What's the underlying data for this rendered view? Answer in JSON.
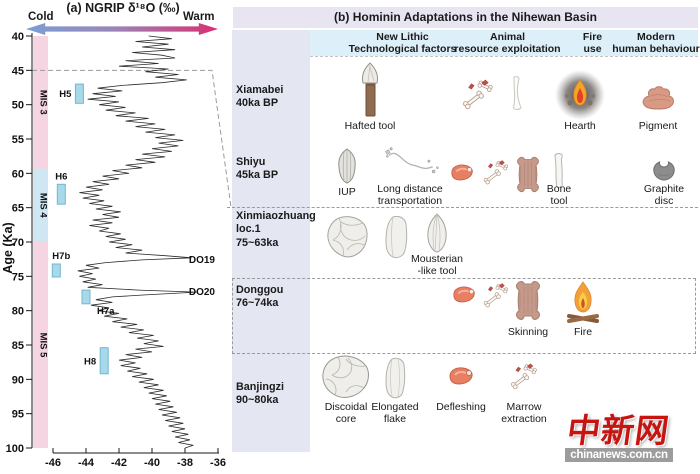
{
  "panel_a": {
    "cold_label": "Cold",
    "warm_label": "Warm"
  },
  "chart_data": {
    "type": "line",
    "title": "(a) NGRIP δ¹⁸O (‰)",
    "xlabel": "",
    "ylabel": "Age (Ka)",
    "xlim": [
      -46,
      -36
    ],
    "ylim": [
      40,
      100
    ],
    "x_ticks": [
      -46,
      -44,
      -42,
      -40,
      -38,
      -36
    ],
    "y_ticks": [
      40,
      45,
      50,
      55,
      60,
      65,
      70,
      75,
      80,
      85,
      90,
      95,
      100
    ],
    "grid": false,
    "mis_bands": [
      {
        "label": "MIS 3",
        "from": 40,
        "to": 59.3,
        "color": "#f6d5e2"
      },
      {
        "label": "MIS 4",
        "from": 59.3,
        "to": 70,
        "color": "#cfe7f3"
      },
      {
        "label": "MIS 5",
        "from": 70,
        "to": 100,
        "color": "#f6d5e2"
      }
    ],
    "heinrich_events": [
      {
        "label": "H5",
        "from": 47.0,
        "to": 49.8,
        "value": -44.4,
        "side": "left"
      },
      {
        "label": "H6",
        "from": 61.6,
        "to": 64.5,
        "value": -45.5,
        "side": "above"
      },
      {
        "label": "H7b",
        "from": 73.2,
        "to": 75.1,
        "value": -45.8,
        "side": "above-start"
      },
      {
        "label": "H7a",
        "from": 77.0,
        "to": 79.0,
        "value": -44.0,
        "side": "below-right"
      },
      {
        "label": "H8",
        "from": 85.4,
        "to": 89.2,
        "value": -42.9,
        "side": "left"
      }
    ],
    "do_events": [
      {
        "label": "DO19",
        "age": 72.6
      },
      {
        "label": "DO20",
        "age": 77.3
      }
    ],
    "dashed_link_age": 45,
    "series": [
      {
        "name": "NGRIP δ¹⁸O",
        "points": [
          [
            40.0,
            -40.2
          ],
          [
            40.4,
            -38.8
          ],
          [
            40.8,
            -41.0
          ],
          [
            41.2,
            -39.0
          ],
          [
            41.6,
            -40.6
          ],
          [
            42.0,
            -38.6
          ],
          [
            42.4,
            -41.2
          ],
          [
            42.8,
            -39.4
          ],
          [
            43.2,
            -38.6
          ],
          [
            43.6,
            -41.6
          ],
          [
            44.0,
            -39.6
          ],
          [
            44.4,
            -42.0
          ],
          [
            44.8,
            -39.0
          ],
          [
            45.2,
            -40.4
          ],
          [
            45.6,
            -38.4
          ],
          [
            46.0,
            -39.8
          ],
          [
            46.4,
            -37.9
          ],
          [
            46.8,
            -39.4
          ],
          [
            47.2,
            -41.8
          ],
          [
            47.6,
            -43.3
          ],
          [
            48.0,
            -41.8
          ],
          [
            48.4,
            -43.6
          ],
          [
            48.8,
            -42.2
          ],
          [
            49.2,
            -43.9
          ],
          [
            49.6,
            -42.0
          ],
          [
            50.0,
            -43.2
          ],
          [
            50.4,
            -41.6
          ],
          [
            50.8,
            -42.8
          ],
          [
            51.2,
            -41.0
          ],
          [
            51.6,
            -42.2
          ],
          [
            52.0,
            -40.2
          ],
          [
            52.4,
            -41.6
          ],
          [
            52.8,
            -39.8
          ],
          [
            53.2,
            -41.0
          ],
          [
            53.6,
            -39.2
          ],
          [
            54.0,
            -40.4
          ],
          [
            54.4,
            -38.6
          ],
          [
            54.8,
            -39.8
          ],
          [
            55.2,
            -38.1
          ],
          [
            55.6,
            -39.6
          ],
          [
            56.0,
            -38.4
          ],
          [
            56.4,
            -40.0
          ],
          [
            56.8,
            -38.8
          ],
          [
            57.2,
            -40.6
          ],
          [
            57.6,
            -39.2
          ],
          [
            58.0,
            -41.0
          ],
          [
            58.4,
            -39.8
          ],
          [
            58.8,
            -41.6
          ],
          [
            59.2,
            -40.6
          ],
          [
            59.6,
            -42.4
          ],
          [
            60.0,
            -41.4
          ],
          [
            60.4,
            -43.0
          ],
          [
            60.8,
            -42.0
          ],
          [
            61.2,
            -43.6
          ],
          [
            61.6,
            -42.6
          ],
          [
            62.0,
            -44.0
          ],
          [
            62.4,
            -43.0
          ],
          [
            62.8,
            -44.4
          ],
          [
            63.2,
            -43.2
          ],
          [
            63.6,
            -44.2
          ],
          [
            64.0,
            -42.9
          ],
          [
            64.4,
            -43.8
          ],
          [
            64.8,
            -42.4
          ],
          [
            65.2,
            -43.4
          ],
          [
            65.6,
            -41.9
          ],
          [
            66.0,
            -43.0
          ],
          [
            66.4,
            -42.0
          ],
          [
            66.8,
            -43.6
          ],
          [
            67.2,
            -42.4
          ],
          [
            67.6,
            -43.8
          ],
          [
            68.0,
            -42.6
          ],
          [
            68.4,
            -43.2
          ],
          [
            68.8,
            -41.9
          ],
          [
            69.2,
            -42.8
          ],
          [
            69.6,
            -41.6
          ],
          [
            70.0,
            -42.6
          ],
          [
            70.4,
            -41.2
          ],
          [
            70.8,
            -42.2
          ],
          [
            71.2,
            -40.6
          ],
          [
            71.6,
            -41.6
          ],
          [
            72.0,
            -39.2
          ],
          [
            72.3,
            -37.6
          ],
          [
            72.6,
            -40.6
          ],
          [
            73.0,
            -42.8
          ],
          [
            73.4,
            -44.0
          ],
          [
            73.8,
            -43.2
          ],
          [
            74.2,
            -44.5
          ],
          [
            74.6,
            -43.6
          ],
          [
            75.0,
            -44.4
          ],
          [
            75.4,
            -43.4
          ],
          [
            75.8,
            -44.2
          ],
          [
            76.2,
            -43.0
          ],
          [
            76.6,
            -43.9
          ],
          [
            77.0,
            -40.8
          ],
          [
            77.3,
            -37.3
          ],
          [
            77.7,
            -40.4
          ],
          [
            78.0,
            -42.4
          ],
          [
            78.4,
            -43.4
          ],
          [
            78.8,
            -42.4
          ],
          [
            79.2,
            -43.7
          ],
          [
            79.6,
            -42.6
          ],
          [
            80.0,
            -43.3
          ],
          [
            80.4,
            -42.0
          ],
          [
            80.8,
            -42.9
          ],
          [
            81.2,
            -41.5
          ],
          [
            81.6,
            -42.4
          ],
          [
            82.0,
            -40.9
          ],
          [
            82.4,
            -41.9
          ],
          [
            82.8,
            -40.5
          ],
          [
            83.2,
            -41.4
          ],
          [
            83.6,
            -39.9
          ],
          [
            84.0,
            -40.9
          ],
          [
            84.4,
            -39.6
          ],
          [
            84.8,
            -40.5
          ],
          [
            85.2,
            -39.3
          ],
          [
            85.6,
            -41.0
          ],
          [
            86.0,
            -40.0
          ],
          [
            86.4,
            -41.6
          ],
          [
            86.8,
            -40.6
          ],
          [
            87.2,
            -42.0
          ],
          [
            87.6,
            -41.0
          ],
          [
            88.0,
            -41.9
          ],
          [
            88.4,
            -40.7
          ],
          [
            88.8,
            -41.5
          ],
          [
            89.2,
            -40.3
          ],
          [
            89.6,
            -41.2
          ],
          [
            90.0,
            -39.9
          ],
          [
            90.4,
            -40.8
          ],
          [
            90.8,
            -39.6
          ],
          [
            91.2,
            -40.5
          ],
          [
            91.6,
            -39.3
          ],
          [
            92.0,
            -40.2
          ],
          [
            92.4,
            -39.1
          ],
          [
            92.8,
            -40.0
          ],
          [
            93.2,
            -38.9
          ],
          [
            93.6,
            -39.8
          ],
          [
            94.0,
            -38.7
          ],
          [
            94.4,
            -39.6
          ],
          [
            94.8,
            -38.5
          ],
          [
            95.2,
            -39.4
          ],
          [
            95.6,
            -38.3
          ],
          [
            96.0,
            -39.2
          ],
          [
            96.4,
            -38.1
          ],
          [
            96.8,
            -39.0
          ],
          [
            97.2,
            -38.0
          ],
          [
            97.6,
            -38.8
          ],
          [
            98.0,
            -37.8
          ],
          [
            98.4,
            -38.6
          ],
          [
            98.8,
            -37.7
          ],
          [
            99.2,
            -38.4
          ],
          [
            99.6,
            -37.5
          ],
          [
            100.0,
            -38.0
          ]
        ]
      }
    ]
  },
  "panel_b": {
    "title": "(b) Hominin Adaptations in the Nihewan Basin",
    "columns": [
      "New Lithic\nTechnological factors",
      "Animal\nresource exploitation",
      "Fire\nuse",
      "Modern\nhuman behaviour"
    ],
    "rows": [
      {
        "site": "Xiamabei",
        "age": "40ka BP",
        "items": [
          {
            "icon": "hafted-tool",
            "label": "Hafted tool"
          },
          {
            "icon": "bones",
            "label": ""
          },
          {
            "icon": "bone-plain",
            "label": ""
          },
          {
            "icon": "hearth",
            "label": "Hearth"
          },
          {
            "icon": "pigment",
            "label": "Pigment"
          }
        ]
      },
      {
        "site": "Shiyu",
        "age": "45ka BP",
        "items": [
          {
            "icon": "iup-tool",
            "label": "IUP"
          },
          {
            "icon": "long-distance",
            "label": "Long distance\ntransportation"
          },
          {
            "icon": "meat",
            "label": ""
          },
          {
            "icon": "bones",
            "label": ""
          },
          {
            "icon": "hide",
            "label": ""
          },
          {
            "icon": "bone-tool",
            "label": "Bone\ntool"
          },
          {
            "icon": "graphite-disc",
            "label": "Graphite\ndisc"
          }
        ]
      },
      {
        "site": "Xinmiaozhuang loc.1",
        "age": "75~63ka",
        "items": [
          {
            "icon": "core-stone",
            "label": ""
          },
          {
            "icon": "flake-stone",
            "label": ""
          },
          {
            "icon": "mousterian-tool",
            "label": "Mousterian\n-like tool"
          }
        ]
      },
      {
        "site": "Donggou",
        "age": "76~74ka",
        "items": [
          {
            "icon": "meat",
            "label": ""
          },
          {
            "icon": "bones",
            "label": ""
          },
          {
            "icon": "hide",
            "label": "Skinning"
          },
          {
            "icon": "campfire",
            "label": "Fire"
          }
        ]
      },
      {
        "site": "Banjingzi",
        "age": "90~80ka",
        "items": [
          {
            "icon": "discoidal-core",
            "label": "Discoidal\ncore"
          },
          {
            "icon": "elongated-flake",
            "label": "Elongated\nflake"
          },
          {
            "icon": "meat",
            "label": "Defleshing"
          },
          {
            "icon": "bones",
            "label": "Marrow\nextraction"
          }
        ]
      }
    ]
  },
  "watermark": {
    "logo": "中新网",
    "domain": "chinanews.com.cn"
  }
}
